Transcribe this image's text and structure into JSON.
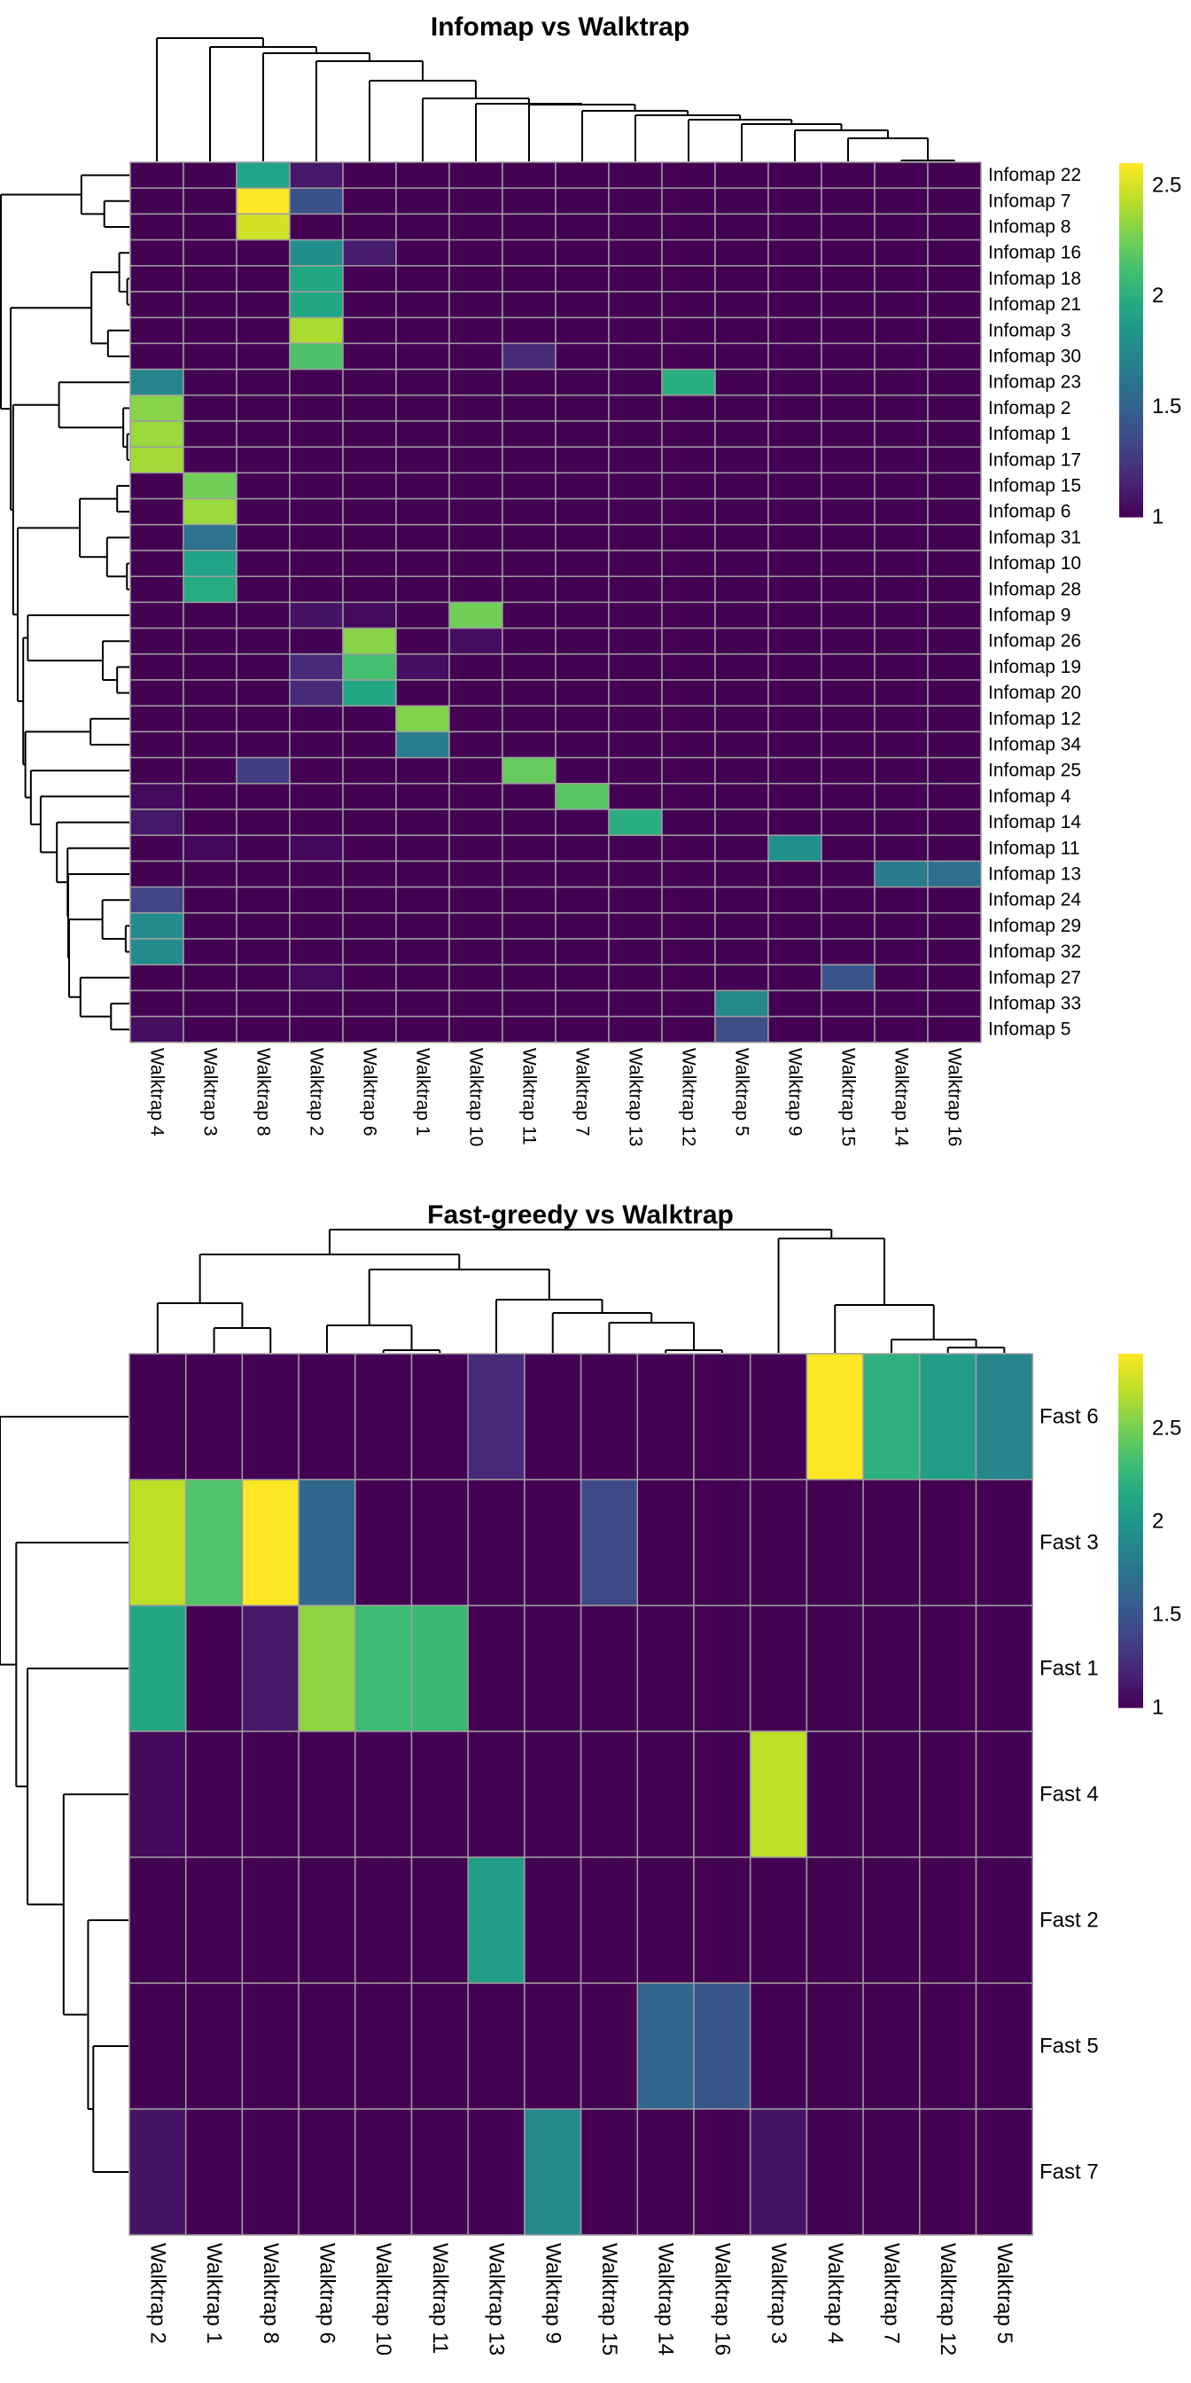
{
  "chart_data": [
    {
      "type": "heatmap",
      "title": "Infomap vs Walktrap",
      "xlabel": "",
      "ylabel": "",
      "colormap": "viridis",
      "color_range": [
        1,
        2.6
      ],
      "legend_ticks": [
        "1",
        "1.5",
        "2",
        "2.5"
      ],
      "legend_placement": "right",
      "dendrograms": [
        "top",
        "left"
      ],
      "cell_border_color": "#9e9e9e",
      "columns": [
        "Walktrap 4",
        "Walktrap 3",
        "Walktrap 8",
        "Walktrap 2",
        "Walktrap 6",
        "Walktrap 1",
        "Walktrap 10",
        "Walktrap 11",
        "Walktrap 7",
        "Walktrap 13",
        "Walktrap 12",
        "Walktrap 5",
        "Walktrap 9",
        "Walktrap 15",
        "Walktrap 14",
        "Walktrap 16"
      ],
      "rows": [
        "Infomap 22",
        "Infomap 7",
        "Infomap 8",
        "Infomap 16",
        "Infomap 18",
        "Infomap 21",
        "Infomap 3",
        "Infomap 30",
        "Infomap 23",
        "Infomap 2",
        "Infomap 1",
        "Infomap 17",
        "Infomap 15",
        "Infomap 6",
        "Infomap 31",
        "Infomap 10",
        "Infomap 28",
        "Infomap 9",
        "Infomap 26",
        "Infomap 19",
        "Infomap 20",
        "Infomap 12",
        "Infomap 34",
        "Infomap 25",
        "Infomap 4",
        "Infomap 14",
        "Infomap 11",
        "Infomap 13",
        "Infomap 24",
        "Infomap 29",
        "Infomap 32",
        "Infomap 27",
        "Infomap 33",
        "Infomap 5"
      ],
      "values": [
        [
          1,
          1,
          1.93,
          1.1,
          1,
          1,
          1,
          1,
          1,
          1,
          1,
          1,
          1,
          1,
          1,
          1
        ],
        [
          1,
          1,
          2.6,
          1.4,
          1,
          1,
          1,
          1,
          1,
          1,
          1,
          1,
          1,
          1,
          1,
          1
        ],
        [
          1,
          1,
          2.49,
          1,
          1,
          1,
          1,
          1,
          1,
          1,
          1,
          1,
          1,
          1,
          1,
          1
        ],
        [
          1,
          1,
          1,
          1.78,
          1.12,
          1,
          1,
          1,
          1,
          1,
          1,
          1,
          1,
          1,
          1,
          1
        ],
        [
          1,
          1,
          1,
          1.96,
          1,
          1,
          1,
          1,
          1,
          1,
          1,
          1,
          1,
          1,
          1,
          1
        ],
        [
          1,
          1,
          1,
          1.96,
          1,
          1,
          1,
          1,
          1,
          1,
          1,
          1,
          1,
          1,
          1,
          1
        ],
        [
          1,
          1,
          1,
          2.4,
          1,
          1,
          1,
          1,
          1,
          1,
          1,
          1,
          1,
          1,
          1,
          1
        ],
        [
          1,
          1,
          1,
          2.15,
          1,
          1,
          1,
          1.19,
          1,
          1,
          1,
          1,
          1,
          1,
          1,
          1
        ],
        [
          1.72,
          1,
          1,
          1,
          1,
          1,
          1,
          1,
          1,
          1,
          2.0,
          1,
          1,
          1,
          1,
          1
        ],
        [
          2.31,
          1,
          1,
          1,
          1,
          1,
          1,
          1,
          1,
          1,
          1,
          1,
          1,
          1,
          1,
          1
        ],
        [
          2.36,
          1,
          1,
          1,
          1,
          1,
          1,
          1,
          1,
          1,
          1,
          1,
          1,
          1,
          1,
          1
        ],
        [
          2.38,
          1,
          1,
          1,
          1,
          1,
          1,
          1,
          1,
          1,
          1,
          1,
          1,
          1,
          1,
          1
        ],
        [
          1,
          2.25,
          1,
          1,
          1,
          1,
          1,
          1,
          1,
          1,
          1,
          1,
          1,
          1,
          1,
          1
        ],
        [
          1,
          2.36,
          1,
          1,
          1,
          1,
          1,
          1,
          1,
          1,
          1,
          1,
          1,
          1,
          1,
          1
        ],
        [
          1,
          1.6,
          1,
          1,
          1,
          1,
          1,
          1,
          1,
          1,
          1,
          1,
          1,
          1,
          1,
          1
        ],
        [
          1,
          1.93,
          1,
          1,
          1,
          1,
          1,
          1,
          1,
          1,
          1,
          1,
          1,
          1,
          1,
          1
        ],
        [
          1,
          1.98,
          1,
          1,
          1,
          1,
          1,
          1,
          1,
          1,
          1,
          1,
          1,
          1,
          1,
          1
        ],
        [
          1,
          1,
          1,
          1.08,
          1.04,
          1,
          2.25,
          1,
          1,
          1,
          1,
          1,
          1,
          1,
          1,
          1
        ],
        [
          1,
          1,
          1,
          1,
          2.31,
          1,
          1.06,
          1,
          1,
          1,
          1,
          1,
          1,
          1,
          1,
          1
        ],
        [
          1,
          1,
          1,
          1.19,
          2.12,
          1.06,
          1,
          1,
          1,
          1,
          1,
          1,
          1,
          1,
          1,
          1
        ],
        [
          1,
          1,
          1,
          1.19,
          1.96,
          1,
          1,
          1,
          1,
          1,
          1,
          1,
          1,
          1,
          1,
          1
        ],
        [
          1,
          1,
          1,
          1,
          1,
          2.3,
          1,
          1,
          1,
          1,
          1,
          1,
          1,
          1,
          1,
          1
        ],
        [
          1,
          1,
          1,
          1,
          1,
          1.67,
          1,
          1,
          1,
          1,
          1,
          1,
          1,
          1,
          1,
          1
        ],
        [
          1,
          1,
          1.29,
          1,
          1,
          1,
          1,
          2.22,
          1,
          1,
          1,
          1,
          1,
          1,
          1,
          1
        ],
        [
          1.04,
          1,
          1,
          1,
          1,
          1,
          1,
          1,
          2.18,
          1,
          1,
          1,
          1,
          1,
          1,
          1
        ],
        [
          1.1,
          1,
          1,
          1,
          1,
          1,
          1,
          1,
          1,
          2.0,
          1,
          1,
          1,
          1,
          1,
          1
        ],
        [
          1,
          1.03,
          1,
          1.03,
          1,
          1,
          1,
          1,
          1,
          1,
          1,
          1,
          1.8,
          1,
          1,
          1
        ],
        [
          1,
          1,
          1,
          1,
          1,
          1,
          1,
          1,
          1,
          1,
          1,
          1,
          1,
          1,
          1.66,
          1.58
        ],
        [
          1.32,
          1,
          1,
          1,
          1,
          1,
          1,
          1,
          1,
          1,
          1,
          1,
          1,
          1,
          1,
          1
        ],
        [
          1.76,
          1,
          1,
          1,
          1,
          1,
          1,
          1,
          1,
          1,
          1,
          1,
          1,
          1,
          1,
          1
        ],
        [
          1.76,
          1,
          1,
          1,
          1,
          1,
          1,
          1,
          1,
          1,
          1,
          1,
          1,
          1,
          1,
          1
        ],
        [
          1,
          1,
          1,
          1.04,
          1,
          1,
          1,
          1,
          1,
          1,
          1,
          1,
          1,
          1.42,
          1,
          1
        ],
        [
          1,
          1,
          1,
          1,
          1,
          1,
          1,
          1,
          1,
          1,
          1,
          1.75,
          1,
          1,
          1,
          1
        ],
        [
          1.06,
          1,
          1,
          1,
          1,
          1,
          1,
          1,
          1,
          1,
          1,
          1.38,
          1,
          1,
          1,
          1
        ]
      ]
    },
    {
      "type": "heatmap",
      "title": "Fast-greedy vs Walktrap",
      "xlabel": "",
      "ylabel": "",
      "colormap": "viridis",
      "color_range": [
        1,
        2.9
      ],
      "legend_ticks": [
        "1",
        "1.5",
        "2",
        "2.5"
      ],
      "legend_placement": "right",
      "dendrograms": [
        "top",
        "left"
      ],
      "cell_border_color": "#9e9e9e",
      "columns": [
        "Walktrap 2",
        "Walktrap 1",
        "Walktrap 8",
        "Walktrap 6",
        "Walktrap 10",
        "Walktrap 11",
        "Walktrap 13",
        "Walktrap 9",
        "Walktrap 15",
        "Walktrap 14",
        "Walktrap 16",
        "Walktrap 3",
        "Walktrap 4",
        "Walktrap 7",
        "Walktrap 12",
        "Walktrap 5"
      ],
      "rows": [
        "Fast 6",
        "Fast 3",
        "Fast 1",
        "Fast 4",
        "Fast 2",
        "Fast 5",
        "Fast 7"
      ],
      "values": [
        [
          1,
          1,
          1,
          1,
          1,
          1,
          1.23,
          1,
          1,
          1,
          1,
          1,
          2.9,
          2.2,
          2.05,
          1.85
        ],
        [
          2.71,
          2.37,
          2.9,
          1.63,
          1,
          1,
          1,
          1,
          1.42,
          1,
          1,
          1,
          1,
          1,
          1,
          1
        ],
        [
          2.14,
          1,
          1.13,
          2.58,
          2.29,
          2.27,
          1,
          1,
          1,
          1,
          1,
          1,
          1,
          1,
          1,
          1
        ],
        [
          1.04,
          1,
          1,
          1,
          1,
          1,
          1,
          1,
          1,
          1,
          1,
          2.71,
          1,
          1,
          1,
          1
        ],
        [
          1,
          1,
          1,
          1,
          1,
          1,
          2.05,
          1,
          1,
          1,
          1,
          1,
          1,
          1,
          1,
          1
        ],
        [
          1,
          1,
          1,
          1,
          1,
          1,
          1,
          1,
          1,
          1.63,
          1.51,
          1,
          1,
          1,
          1,
          1
        ],
        [
          1.1,
          1,
          1,
          1,
          1,
          1,
          1,
          1.89,
          1,
          1,
          1,
          1.1,
          1,
          1,
          1,
          1
        ]
      ]
    }
  ]
}
